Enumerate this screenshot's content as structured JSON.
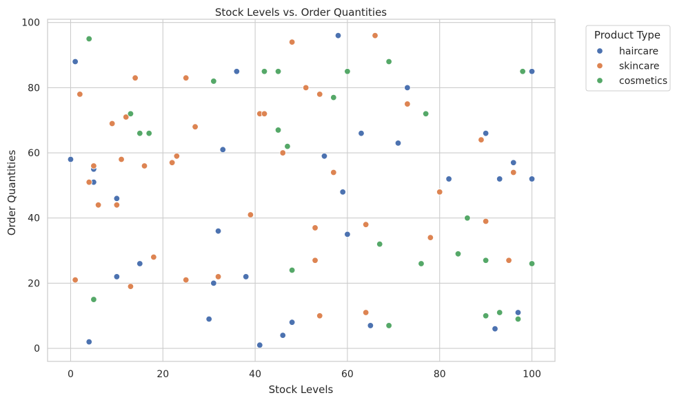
{
  "chart_data": {
    "type": "scatter",
    "title": "Stock Levels vs. Order Quantities",
    "xlabel": "Stock Levels",
    "ylabel": "Order Quantities",
    "xlim": [
      -5,
      105
    ],
    "ylim": [
      -4,
      101
    ],
    "xticks": [
      0,
      20,
      40,
      60,
      80,
      100
    ],
    "yticks": [
      0,
      20,
      40,
      60,
      80,
      100
    ],
    "grid": true,
    "legend": {
      "title": "Product Type",
      "placement": "outside-top-right"
    },
    "series": [
      {
        "name": "haircare",
        "color": "#4c72b0",
        "points": [
          [
            0,
            58
          ],
          [
            1,
            88
          ],
          [
            4,
            2
          ],
          [
            5,
            55
          ],
          [
            5,
            51
          ],
          [
            10,
            46
          ],
          [
            10,
            22
          ],
          [
            15,
            26
          ],
          [
            30,
            9
          ],
          [
            31,
            20
          ],
          [
            32,
            36
          ],
          [
            33,
            61
          ],
          [
            36,
            85
          ],
          [
            38,
            22
          ],
          [
            41,
            1
          ],
          [
            46,
            4
          ],
          [
            48,
            8
          ],
          [
            55,
            59
          ],
          [
            58,
            96
          ],
          [
            59,
            48
          ],
          [
            60,
            35
          ],
          [
            63,
            66
          ],
          [
            65,
            7
          ],
          [
            71,
            63
          ],
          [
            73,
            80
          ],
          [
            82,
            52
          ],
          [
            90,
            66
          ],
          [
            92,
            6
          ],
          [
            93,
            52
          ],
          [
            96,
            57
          ],
          [
            97,
            11
          ],
          [
            100,
            85
          ],
          [
            100,
            52
          ]
        ]
      },
      {
        "name": "skincare",
        "color": "#dd8452",
        "points": [
          [
            1,
            21
          ],
          [
            2,
            78
          ],
          [
            4,
            51
          ],
          [
            5,
            56
          ],
          [
            6,
            44
          ],
          [
            9,
            69
          ],
          [
            10,
            44
          ],
          [
            11,
            58
          ],
          [
            12,
            71
          ],
          [
            13,
            19
          ],
          [
            14,
            83
          ],
          [
            16,
            56
          ],
          [
            18,
            28
          ],
          [
            22,
            57
          ],
          [
            23,
            59
          ],
          [
            25,
            83
          ],
          [
            25,
            21
          ],
          [
            27,
            68
          ],
          [
            32,
            22
          ],
          [
            39,
            41
          ],
          [
            41,
            72
          ],
          [
            42,
            72
          ],
          [
            46,
            60
          ],
          [
            48,
            94
          ],
          [
            51,
            80
          ],
          [
            53,
            37
          ],
          [
            53,
            27
          ],
          [
            54,
            78
          ],
          [
            54,
            10
          ],
          [
            57,
            54
          ],
          [
            64,
            38
          ],
          [
            64,
            11
          ],
          [
            66,
            96
          ],
          [
            73,
            75
          ],
          [
            78,
            34
          ],
          [
            80,
            48
          ],
          [
            89,
            64
          ],
          [
            90,
            39
          ],
          [
            95,
            27
          ],
          [
            96,
            54
          ]
        ]
      },
      {
        "name": "cosmetics",
        "color": "#55a868",
        "points": [
          [
            4,
            95
          ],
          [
            5,
            15
          ],
          [
            13,
            72
          ],
          [
            15,
            66
          ],
          [
            17,
            66
          ],
          [
            31,
            82
          ],
          [
            42,
            85
          ],
          [
            45,
            85
          ],
          [
            45,
            67
          ],
          [
            47,
            62
          ],
          [
            48,
            24
          ],
          [
            57,
            77
          ],
          [
            60,
            85
          ],
          [
            67,
            32
          ],
          [
            69,
            88
          ],
          [
            69,
            7
          ],
          [
            76,
            26
          ],
          [
            77,
            72
          ],
          [
            84,
            29
          ],
          [
            86,
            40
          ],
          [
            90,
            27
          ],
          [
            90,
            10
          ],
          [
            93,
            11
          ],
          [
            97,
            9
          ],
          [
            98,
            85
          ],
          [
            100,
            26
          ]
        ]
      }
    ]
  }
}
